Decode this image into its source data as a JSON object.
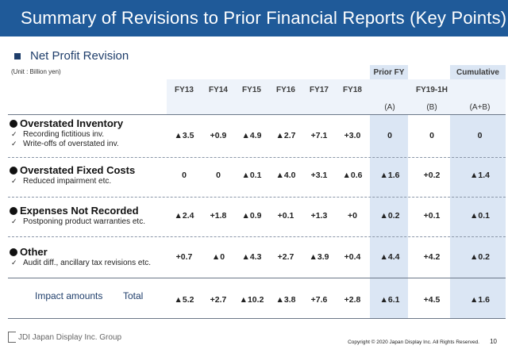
{
  "title": "Summary of Revisions to Prior Financial Reports (Key Points)",
  "section": "Net Profit Revision",
  "unit": "(Unit : Billion yen)",
  "headers": {
    "prior_fy": "Prior FY",
    "cumulative": "Cumulative",
    "columns": [
      "FY13",
      "FY14",
      "FY15",
      "FY16",
      "FY17",
      "FY18",
      "",
      "FY19-1H",
      ""
    ],
    "sub": [
      "(A)",
      "(B)",
      "(A+B)"
    ]
  },
  "rows": [
    {
      "title": "Overstated Inventory",
      "items": [
        "Recording fictitious inv.",
        "Write-offs of overstated inv."
      ],
      "values": [
        "▲3.5",
        "+0.9",
        "▲4.9",
        "▲2.7",
        "+7.1",
        "+3.0",
        "0",
        "0",
        "0"
      ]
    },
    {
      "title": "Overstated Fixed Costs",
      "items": [
        "Reduced impairment etc."
      ],
      "values": [
        "0",
        "0",
        "▲0.1",
        "▲4.0",
        "+3.1",
        "▲0.6",
        "▲1.6",
        "+0.2",
        "▲1.4"
      ]
    },
    {
      "title": "Expenses Not Recorded",
      "items": [
        "Postponing product warranties etc."
      ],
      "values": [
        "▲2.4",
        "+1.8",
        "▲0.9",
        "+0.1",
        "+1.3",
        "+0",
        "▲0.2",
        "+0.1",
        "▲0.1"
      ]
    },
    {
      "title": "Other",
      "items": [
        "Audit diff., ancillary tax revisions etc."
      ],
      "values": [
        "+0.7",
        "▲0",
        "▲4.3",
        "+2.7",
        "▲3.9",
        "+0.4",
        "▲4.4",
        "+4.2",
        "▲0.2"
      ]
    }
  ],
  "total": {
    "label": "Impact amounts",
    "label2": "Total",
    "values": [
      "▲5.2",
      "+2.7",
      "▲10.2",
      "▲3.8",
      "+7.6",
      "+2.8",
      "▲6.1",
      "+4.5",
      "▲1.6"
    ]
  },
  "footer": {
    "logo": "JDI Japan Display Inc. Group",
    "copyright": "Copyright © 2020 Japan Display Inc.  All Rights Reserved.",
    "page": "10"
  },
  "colors": {
    "title_bg": "#1f5a99",
    "shade": "#dbe6f4",
    "accent_text": "#1f3e6b"
  }
}
